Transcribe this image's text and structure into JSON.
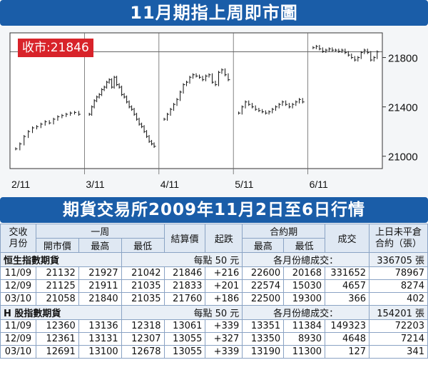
{
  "title": "11月期指上周即市圖",
  "ticker": {
    "label": "收市",
    "value": ":21846"
  },
  "chart_data": {
    "type": "line",
    "title": "11月期指上周即市圖",
    "x_day_labels": [
      "2/11",
      "3/11",
      "4/11",
      "5/11",
      "6/11"
    ],
    "y_ticks": [
      21000,
      21400,
      21800
    ],
    "ylim": [
      20900,
      22000
    ],
    "reference_line": 21846,
    "series": [
      {
        "day": "2/11",
        "values": [
          21060,
          21100,
          21160,
          21200,
          21230,
          21240,
          21260,
          21280,
          21270,
          21300,
          21320,
          21330,
          21340,
          21350,
          21355,
          21340
        ]
      },
      {
        "day": "3/11",
        "values": [
          21340,
          21400,
          21450,
          21480,
          21500,
          21540,
          21560,
          21600,
          21620,
          21560,
          21640,
          21580,
          21560,
          21500,
          21480,
          21440,
          21400,
          21380,
          21340,
          21300,
          21260,
          21240,
          21200,
          21160,
          21120,
          21100,
          21080
        ]
      },
      {
        "day": "4/11",
        "values": [
          21300,
          21340,
          21380,
          21420,
          21460,
          21520,
          21580,
          21600,
          21640,
          21660,
          21650,
          21640,
          21620,
          21650,
          21660,
          21600,
          21580,
          21680,
          21700,
          21660,
          21620
        ]
      },
      {
        "day": "5/11",
        "values": [
          21350,
          21400,
          21440,
          21420,
          21400,
          21380,
          21370,
          21360,
          21350,
          21360,
          21380,
          21400,
          21420,
          21440,
          21420,
          21400,
          21420,
          21440,
          21460,
          21440
        ]
      },
      {
        "day": "6/11",
        "values": [
          21880,
          21890,
          21870,
          21850,
          21860,
          21870,
          21860,
          21860,
          21850,
          21860,
          21840,
          21820,
          21800,
          21780,
          21800,
          21840,
          21860,
          21840,
          21780,
          21800,
          21846
        ]
      }
    ]
  },
  "table_title": "期貨交易所2009年11月2日至6日行情",
  "headers": {
    "month": "交收\n月份",
    "week": "一周",
    "open": "開市價",
    "high": "最高",
    "low": "最低",
    "settle": "結算價",
    "change": "起跌",
    "contract": "合約期",
    "c_high": "最高",
    "c_low": "最低",
    "volume": "成交",
    "oi": "上日未平倉\n合約（張）"
  },
  "sections": [
    {
      "name": "恒生指數期貨",
      "unit": "每點 50 元",
      "total_label": "各月份總成交：",
      "total": "336705 張",
      "rows": [
        [
          "11/09",
          "21132",
          "21927",
          "21042",
          "21846",
          "+216",
          "22600",
          "20168",
          "331652",
          "78967"
        ],
        [
          "12/09",
          "21125",
          "21911",
          "21035",
          "21833",
          "+201",
          "22574",
          "15030",
          "4657",
          "8274"
        ],
        [
          "03/10",
          "21058",
          "21840",
          "21035",
          "21760",
          "+186",
          "22500",
          "19300",
          "366",
          "402"
        ]
      ]
    },
    {
      "name": "H 股指數期貨",
      "unit": "每點 50 元",
      "total_label": "各月份總成交：",
      "total": "154201 張",
      "rows": [
        [
          "11/09",
          "12360",
          "13136",
          "12318",
          "13061",
          "+339",
          "13351",
          "11384",
          "149323",
          "72203"
        ],
        [
          "12/09",
          "12361",
          "13131",
          "12307",
          "13055",
          "+327",
          "13350",
          "8930",
          "4648",
          "7214"
        ],
        [
          "03/10",
          "12691",
          "13100",
          "12678",
          "13055",
          "+339",
          "13190",
          "11300",
          "127",
          "341"
        ]
      ]
    }
  ]
}
